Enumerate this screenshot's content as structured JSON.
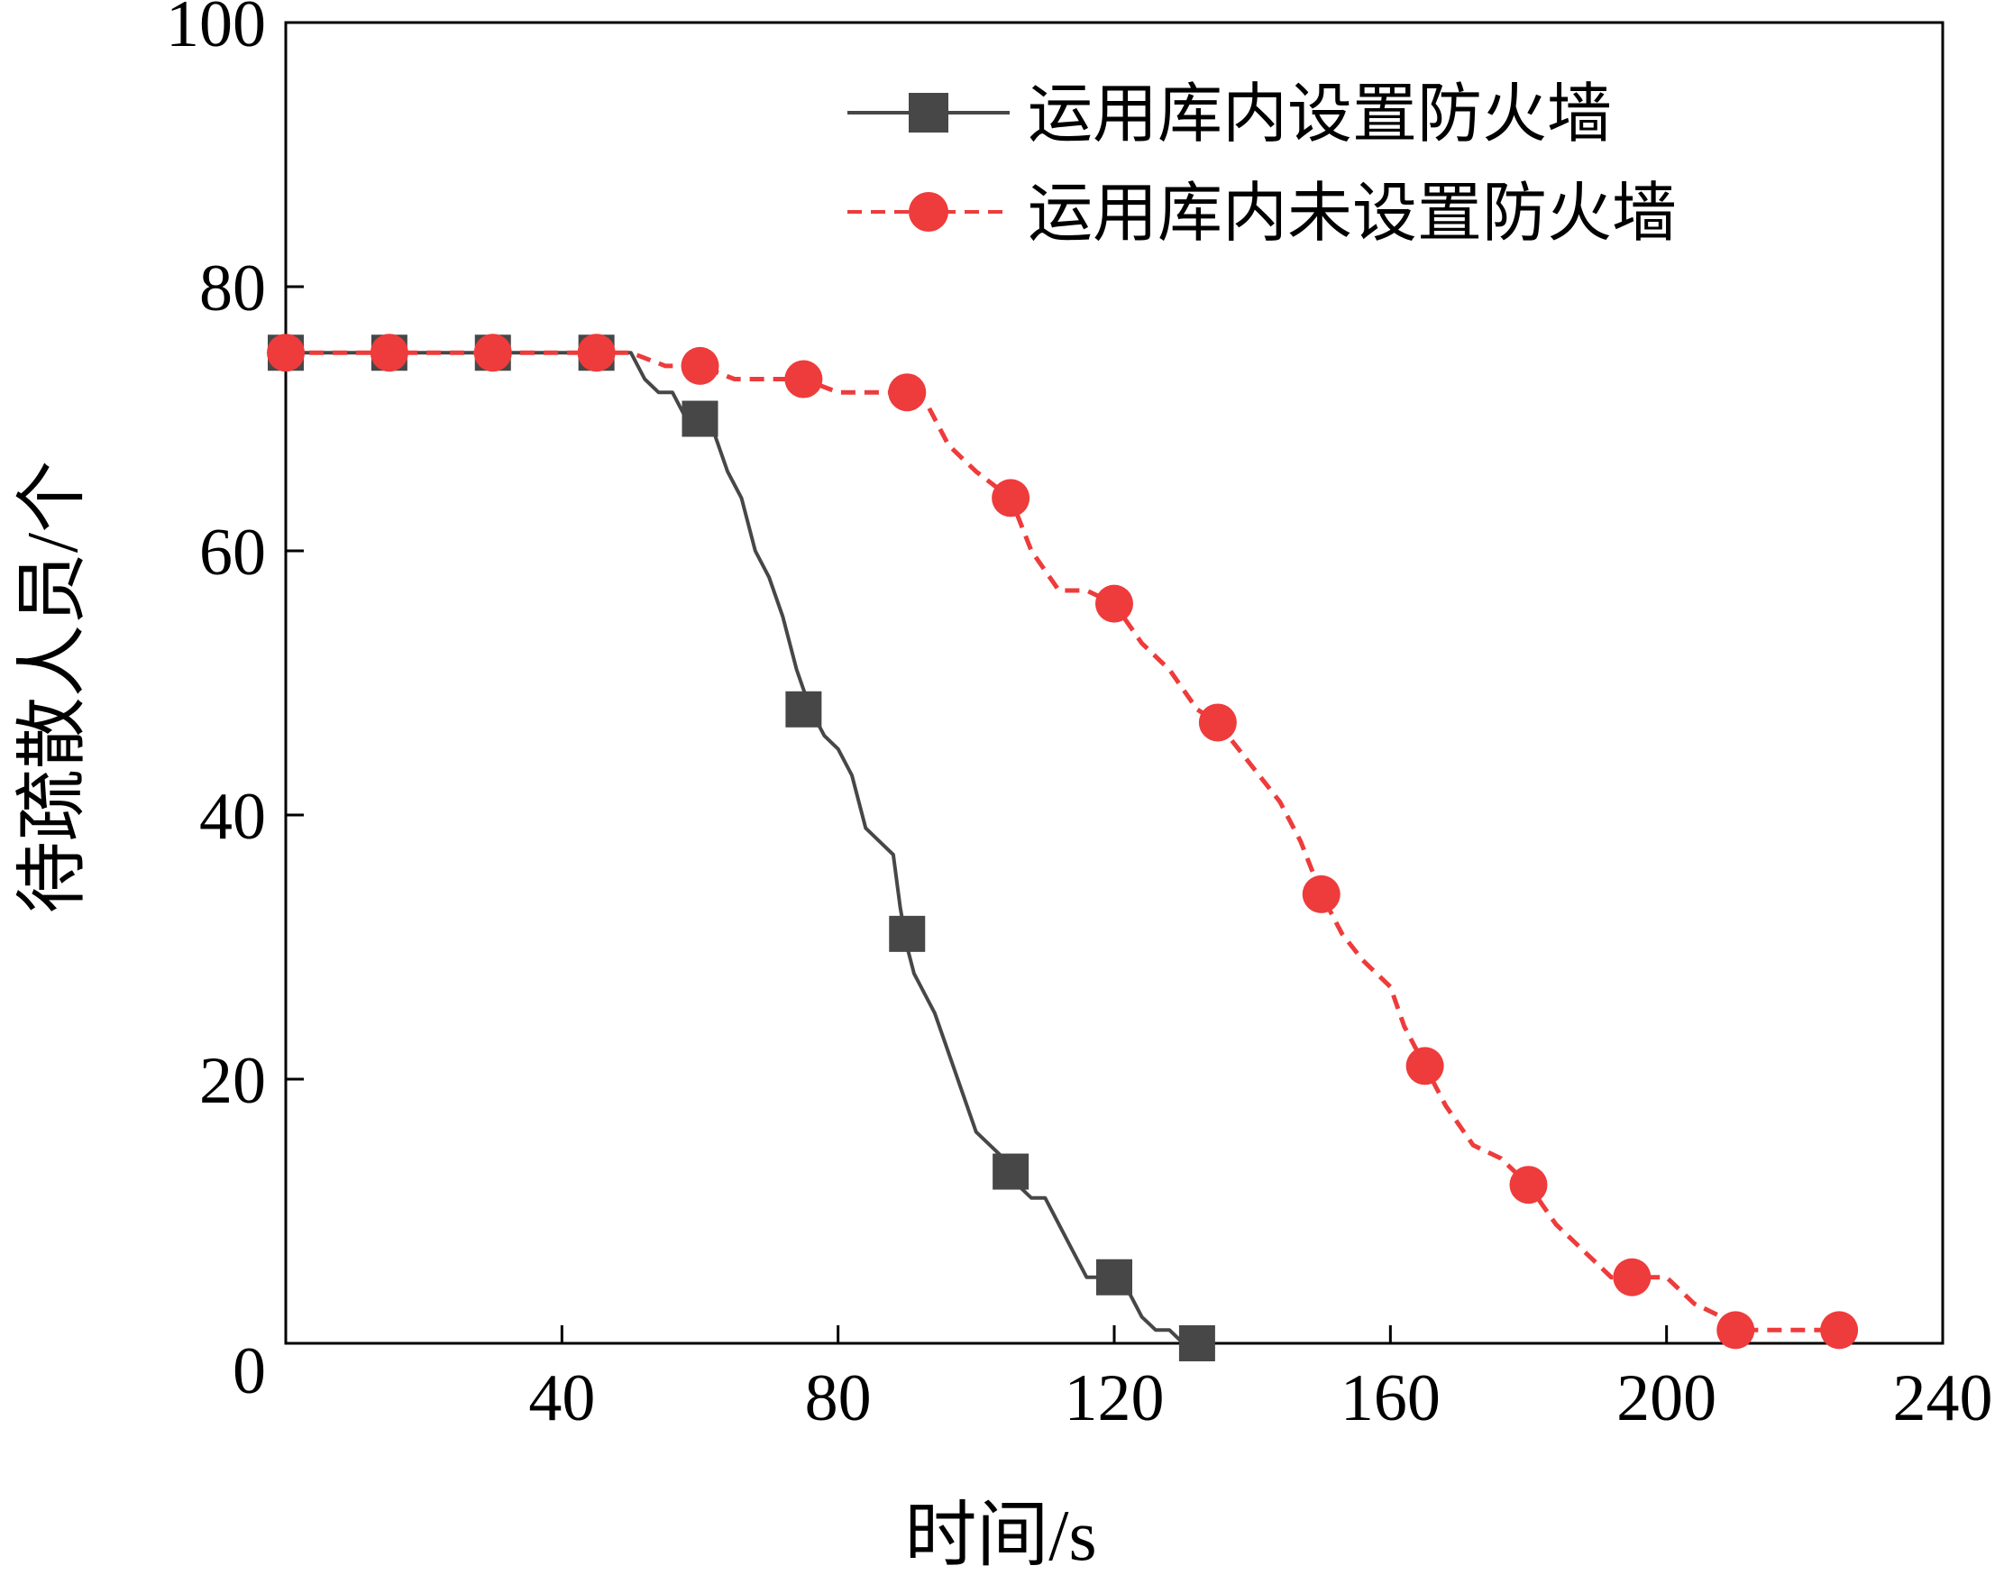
{
  "chart_data": {
    "type": "line",
    "xlabel": "时间/s",
    "ylabel": "待疏散人员/个",
    "xlim": [
      0,
      240
    ],
    "ylim": [
      0,
      100
    ],
    "x_ticks": [
      0,
      40,
      80,
      120,
      160,
      200,
      240
    ],
    "y_ticks": [
      0,
      20,
      40,
      60,
      80,
      100
    ],
    "x_tick_labels": [
      "40",
      "80",
      "120",
      "160",
      "200",
      "240"
    ],
    "y_tick_labels": [
      "0",
      "20",
      "40",
      "60",
      "80",
      "100"
    ],
    "grid": false,
    "legend_position": "top-right",
    "series": [
      {
        "name": "运用库内设置防火墙",
        "color": "#474747",
        "line_style": "solid",
        "marker": "square",
        "points": [
          [
            0,
            75
          ],
          [
            50,
            75
          ],
          [
            52,
            73
          ],
          [
            54,
            72
          ],
          [
            56,
            72
          ],
          [
            58,
            70
          ],
          [
            60,
            70
          ],
          [
            62,
            69
          ],
          [
            64,
            66
          ],
          [
            66,
            64
          ],
          [
            68,
            60
          ],
          [
            70,
            58
          ],
          [
            72,
            55
          ],
          [
            74,
            51
          ],
          [
            76,
            48
          ],
          [
            78,
            46
          ],
          [
            80,
            45
          ],
          [
            82,
            43
          ],
          [
            84,
            39
          ],
          [
            86,
            38
          ],
          [
            88,
            37
          ],
          [
            89,
            33
          ],
          [
            90,
            30
          ],
          [
            91,
            28
          ],
          [
            92,
            27
          ],
          [
            94,
            25
          ],
          [
            96,
            22
          ],
          [
            98,
            19
          ],
          [
            100,
            16
          ],
          [
            102,
            15
          ],
          [
            104,
            14
          ],
          [
            105,
            13
          ],
          [
            106,
            12
          ],
          [
            108,
            11
          ],
          [
            110,
            11
          ],
          [
            112,
            9
          ],
          [
            114,
            7
          ],
          [
            116,
            5
          ],
          [
            120,
            5
          ],
          [
            122,
            4
          ],
          [
            124,
            2
          ],
          [
            126,
            1
          ],
          [
            128,
            1
          ],
          [
            130,
            0
          ],
          [
            132,
            0
          ]
        ],
        "marker_points": [
          [
            0,
            75
          ],
          [
            15,
            75
          ],
          [
            30,
            75
          ],
          [
            45,
            75
          ],
          [
            60,
            70
          ],
          [
            75,
            48
          ],
          [
            90,
            31
          ],
          [
            105,
            13
          ],
          [
            120,
            5
          ],
          [
            132,
            0
          ]
        ]
      },
      {
        "name": "运用库内未设置防火墙",
        "color": "#EE3B3B",
        "line_style": "dashed",
        "marker": "circle",
        "points": [
          [
            0,
            75
          ],
          [
            50,
            75
          ],
          [
            55,
            74
          ],
          [
            60,
            74
          ],
          [
            65,
            73
          ],
          [
            70,
            73
          ],
          [
            75,
            73
          ],
          [
            80,
            72
          ],
          [
            85,
            72
          ],
          [
            90,
            72
          ],
          [
            93,
            71
          ],
          [
            96,
            68
          ],
          [
            100,
            66
          ],
          [
            105,
            64
          ],
          [
            108,
            60
          ],
          [
            112,
            57
          ],
          [
            116,
            57
          ],
          [
            120,
            56
          ],
          [
            124,
            53
          ],
          [
            128,
            51
          ],
          [
            132,
            48
          ],
          [
            135,
            47
          ],
          [
            138,
            45
          ],
          [
            141,
            43
          ],
          [
            144,
            41
          ],
          [
            147,
            38
          ],
          [
            150,
            34
          ],
          [
            153,
            31
          ],
          [
            156,
            29
          ],
          [
            160,
            27
          ],
          [
            162,
            24
          ],
          [
            165,
            21
          ],
          [
            168,
            18
          ],
          [
            172,
            15
          ],
          [
            176,
            14
          ],
          [
            180,
            12
          ],
          [
            184,
            9
          ],
          [
            188,
            7
          ],
          [
            192,
            5
          ],
          [
            195,
            5
          ],
          [
            200,
            5
          ],
          [
            204,
            3
          ],
          [
            208,
            2
          ],
          [
            210,
            1
          ],
          [
            214,
            1
          ],
          [
            218,
            1
          ],
          [
            222,
            1
          ],
          [
            225,
            1
          ]
        ],
        "marker_points": [
          [
            0,
            75
          ],
          [
            15,
            75
          ],
          [
            30,
            75
          ],
          [
            45,
            75
          ],
          [
            60,
            74
          ],
          [
            75,
            73
          ],
          [
            90,
            72
          ],
          [
            105,
            64
          ],
          [
            120,
            56
          ],
          [
            135,
            47
          ],
          [
            150,
            34
          ],
          [
            165,
            21
          ],
          [
            180,
            12
          ],
          [
            195,
            5
          ],
          [
            210,
            1
          ],
          [
            225,
            1
          ]
        ]
      }
    ]
  }
}
